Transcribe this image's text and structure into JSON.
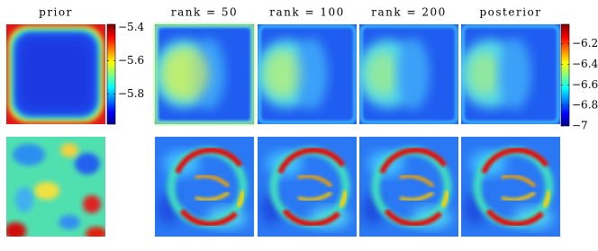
{
  "figure": {
    "column_titles": [
      "prior",
      "rank = 50",
      "rank = 100",
      "rank = 200",
      "posterior"
    ],
    "colorbars": [
      {
        "lim": [
          -5.98,
          -5.38
        ],
        "ticks": [
          {
            "value": -5.4,
            "label": "−5.4"
          },
          {
            "value": -5.6,
            "label": "−5.6"
          },
          {
            "value": -5.8,
            "label": "−5.8"
          }
        ]
      },
      {
        "lim": [
          -7,
          -6.01
        ],
        "ticks": [
          {
            "value": -6.2,
            "label": "−6.2"
          },
          {
            "value": -6.4,
            "label": "−6.4"
          },
          {
            "value": -6.6,
            "label": "−6.6"
          },
          {
            "value": -6.8,
            "label": "−6.8"
          },
          {
            "value": -7,
            "label": "−7"
          }
        ]
      }
    ]
  }
}
